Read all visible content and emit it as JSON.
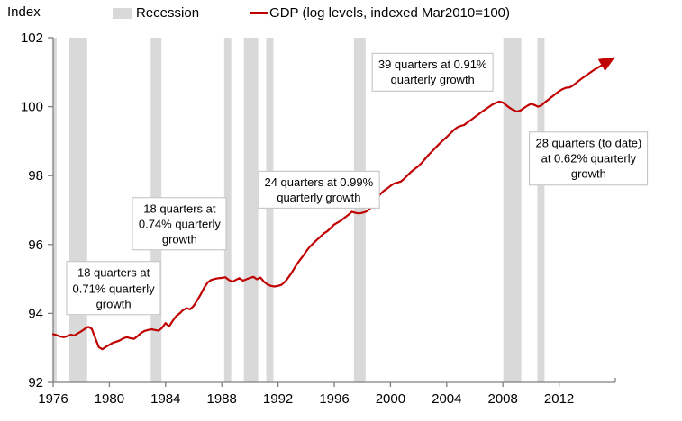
{
  "legend": {
    "recession_label": "Recession",
    "gdp_label": "GDP (log levels, indexed Mar2010=100)"
  },
  "colors": {
    "gdp_line": "#c00000",
    "recession_band": "#d9d9d9",
    "axis": "#7f7f7f",
    "annotation_border": "#bfbfbf",
    "text": "#000000"
  },
  "chart_data": {
    "type": "line",
    "title": "",
    "xlabel": "",
    "ylabel": "Index",
    "xlim": [
      1976,
      2016
    ],
    "ylim": [
      92,
      102
    ],
    "x_ticks": [
      1976,
      1980,
      1984,
      1988,
      1992,
      1996,
      2000,
      2004,
      2008,
      2012
    ],
    "y_ticks": [
      92,
      94,
      96,
      98,
      100,
      102
    ],
    "grid": false,
    "legend_position": "top",
    "recession_bands": [
      [
        1976.0,
        1976.25
      ],
      [
        1977.15,
        1978.42
      ],
      [
        1982.94,
        1983.71
      ],
      [
        1988.17,
        1988.67
      ],
      [
        1989.57,
        1990.59
      ],
      [
        1991.16,
        1991.67
      ],
      [
        1997.4,
        1998.23
      ],
      [
        2008.03,
        2009.31
      ],
      [
        2010.45,
        2010.96
      ]
    ],
    "annotations": [
      {
        "lines": [
          "18 quarters at",
          "0.71% quarterly",
          "growth"
        ],
        "x": 1980.3,
        "y": 94.73
      },
      {
        "lines": [
          "18 quarters at",
          "0.74% quarterly",
          "growth"
        ],
        "x": 1985.0,
        "y": 96.6
      },
      {
        "lines": [
          "24 quarters at 0.99%",
          "quarterly growth"
        ],
        "x": 1994.9,
        "y": 97.6
      },
      {
        "lines": [
          "39 quarters at 0.91%",
          "quarterly growth"
        ],
        "x": 2003.0,
        "y": 101.0
      },
      {
        "lines": [
          "28 quarters (to date)",
          "at 0.62% quarterly",
          "growth"
        ],
        "x": 2014.1,
        "y": 98.5
      }
    ],
    "series": [
      {
        "name": "GDP (log levels, indexed Mar2010=100)",
        "color": "#c00000",
        "end_arrow": true,
        "points": [
          [
            1976.0,
            93.4
          ],
          [
            1976.25,
            93.37
          ],
          [
            1976.5,
            93.33
          ],
          [
            1976.75,
            93.31
          ],
          [
            1977.0,
            93.34
          ],
          [
            1977.25,
            93.38
          ],
          [
            1977.5,
            93.36
          ],
          [
            1977.75,
            93.42
          ],
          [
            1978.0,
            93.48
          ],
          [
            1978.25,
            93.55
          ],
          [
            1978.5,
            93.61
          ],
          [
            1978.75,
            93.55
          ],
          [
            1979.0,
            93.28
          ],
          [
            1979.25,
            93.02
          ],
          [
            1979.5,
            92.96
          ],
          [
            1979.75,
            93.03
          ],
          [
            1980.0,
            93.09
          ],
          [
            1980.25,
            93.15
          ],
          [
            1980.5,
            93.18
          ],
          [
            1980.75,
            93.22
          ],
          [
            1981.0,
            93.28
          ],
          [
            1981.25,
            93.31
          ],
          [
            1981.5,
            93.28
          ],
          [
            1981.75,
            93.26
          ],
          [
            1982.0,
            93.34
          ],
          [
            1982.25,
            93.43
          ],
          [
            1982.5,
            93.49
          ],
          [
            1982.75,
            93.52
          ],
          [
            1983.0,
            93.54
          ],
          [
            1983.25,
            93.52
          ],
          [
            1983.5,
            93.5
          ],
          [
            1983.75,
            93.58
          ],
          [
            1984.0,
            93.72
          ],
          [
            1984.25,
            93.62
          ],
          [
            1984.5,
            93.78
          ],
          [
            1984.75,
            93.92
          ],
          [
            1985.0,
            94.0
          ],
          [
            1985.25,
            94.1
          ],
          [
            1985.5,
            94.15
          ],
          [
            1985.75,
            94.12
          ],
          [
            1986.0,
            94.22
          ],
          [
            1986.25,
            94.38
          ],
          [
            1986.5,
            94.55
          ],
          [
            1986.75,
            94.75
          ],
          [
            1987.0,
            94.9
          ],
          [
            1987.25,
            94.97
          ],
          [
            1987.5,
            95.0
          ],
          [
            1987.75,
            95.02
          ],
          [
            1988.0,
            95.03
          ],
          [
            1988.25,
            95.05
          ],
          [
            1988.5,
            94.97
          ],
          [
            1988.75,
            94.92
          ],
          [
            1989.0,
            94.97
          ],
          [
            1989.25,
            95.02
          ],
          [
            1989.5,
            94.95
          ],
          [
            1989.75,
            94.99
          ],
          [
            1990.0,
            95.03
          ],
          [
            1990.25,
            95.06
          ],
          [
            1990.5,
            94.99
          ],
          [
            1990.75,
            95.04
          ],
          [
            1991.0,
            94.92
          ],
          [
            1991.25,
            94.84
          ],
          [
            1991.5,
            94.8
          ],
          [
            1991.75,
            94.78
          ],
          [
            1992.0,
            94.8
          ],
          [
            1992.25,
            94.83
          ],
          [
            1992.5,
            94.92
          ],
          [
            1992.75,
            95.05
          ],
          [
            1993.0,
            95.2
          ],
          [
            1993.25,
            95.37
          ],
          [
            1993.5,
            95.52
          ],
          [
            1993.75,
            95.65
          ],
          [
            1994.0,
            95.8
          ],
          [
            1994.25,
            95.93
          ],
          [
            1994.5,
            96.03
          ],
          [
            1994.75,
            96.13
          ],
          [
            1995.0,
            96.22
          ],
          [
            1995.25,
            96.32
          ],
          [
            1995.5,
            96.38
          ],
          [
            1995.75,
            96.48
          ],
          [
            1996.0,
            96.58
          ],
          [
            1996.25,
            96.64
          ],
          [
            1996.5,
            96.7
          ],
          [
            1996.75,
            96.78
          ],
          [
            1997.0,
            96.86
          ],
          [
            1997.25,
            96.95
          ],
          [
            1997.5,
            96.92
          ],
          [
            1997.75,
            96.9
          ],
          [
            1998.0,
            96.92
          ],
          [
            1998.25,
            96.95
          ],
          [
            1998.5,
            97.02
          ],
          [
            1998.75,
            97.15
          ],
          [
            1999.0,
            97.32
          ],
          [
            1999.25,
            97.45
          ],
          [
            1999.5,
            97.55
          ],
          [
            1999.75,
            97.62
          ],
          [
            2000.0,
            97.7
          ],
          [
            2000.25,
            97.77
          ],
          [
            2000.5,
            97.8
          ],
          [
            2000.75,
            97.83
          ],
          [
            2001.0,
            97.92
          ],
          [
            2001.25,
            98.02
          ],
          [
            2001.5,
            98.12
          ],
          [
            2001.75,
            98.2
          ],
          [
            2002.0,
            98.28
          ],
          [
            2002.25,
            98.38
          ],
          [
            2002.5,
            98.5
          ],
          [
            2002.75,
            98.62
          ],
          [
            2003.0,
            98.72
          ],
          [
            2003.25,
            98.83
          ],
          [
            2003.5,
            98.93
          ],
          [
            2003.75,
            99.03
          ],
          [
            2004.0,
            99.12
          ],
          [
            2004.25,
            99.22
          ],
          [
            2004.5,
            99.32
          ],
          [
            2004.75,
            99.4
          ],
          [
            2005.0,
            99.44
          ],
          [
            2005.25,
            99.47
          ],
          [
            2005.5,
            99.55
          ],
          [
            2005.75,
            99.62
          ],
          [
            2006.0,
            99.7
          ],
          [
            2006.25,
            99.77
          ],
          [
            2006.5,
            99.85
          ],
          [
            2006.75,
            99.92
          ],
          [
            2007.0,
            99.99
          ],
          [
            2007.25,
            100.06
          ],
          [
            2007.5,
            100.11
          ],
          [
            2007.75,
            100.15
          ],
          [
            2008.0,
            100.12
          ],
          [
            2008.25,
            100.04
          ],
          [
            2008.5,
            99.96
          ],
          [
            2008.75,
            99.9
          ],
          [
            2009.0,
            99.86
          ],
          [
            2009.25,
            99.89
          ],
          [
            2009.5,
            99.96
          ],
          [
            2009.75,
            100.03
          ],
          [
            2010.0,
            100.08
          ],
          [
            2010.25,
            100.05
          ],
          [
            2010.5,
            100.0
          ],
          [
            2010.75,
            100.04
          ],
          [
            2011.0,
            100.13
          ],
          [
            2011.25,
            100.21
          ],
          [
            2011.5,
            100.29
          ],
          [
            2011.75,
            100.37
          ],
          [
            2012.0,
            100.45
          ],
          [
            2012.25,
            100.51
          ],
          [
            2012.5,
            100.55
          ],
          [
            2012.75,
            100.56
          ],
          [
            2013.0,
            100.62
          ],
          [
            2013.25,
            100.7
          ],
          [
            2013.5,
            100.78
          ],
          [
            2013.75,
            100.86
          ],
          [
            2014.0,
            100.93
          ],
          [
            2014.25,
            101.0
          ],
          [
            2014.5,
            101.07
          ],
          [
            2014.75,
            101.13
          ],
          [
            2015.0,
            101.19
          ],
          [
            2015.25,
            101.26
          ],
          [
            2015.5,
            101.32
          ]
        ]
      }
    ]
  }
}
